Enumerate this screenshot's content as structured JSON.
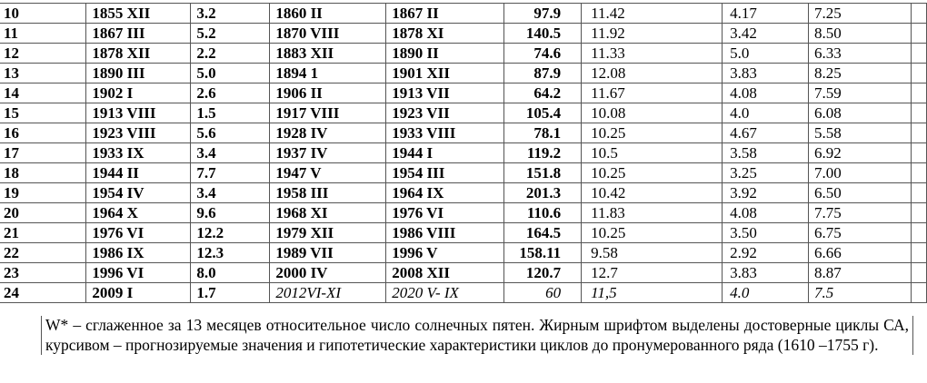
{
  "table": {
    "rows": [
      [
        "10",
        "1855 XII",
        "3.2",
        "1860 II",
        "1867 II",
        "97.9",
        "11.42",
        "4.17",
        "7.25"
      ],
      [
        "11",
        "1867 III",
        "5.2",
        "1870 VIII",
        "1878 XI",
        "140.5",
        "11.92",
        "3.42",
        "8.50"
      ],
      [
        "12",
        "1878 XII",
        "2.2",
        "1883 XII",
        "1890 II",
        "74.6",
        "11.33",
        "5.0",
        "6.33"
      ],
      [
        "13",
        "1890 III",
        "5.0",
        "1894 1",
        "1901 XII",
        "87.9",
        "12.08",
        "3.83",
        "8.25"
      ],
      [
        "14",
        "1902 I",
        "2.6",
        "1906 II",
        "1913 VII",
        "64.2",
        "11.67",
        "4.08",
        "7.59"
      ],
      [
        "15",
        "1913 VIII",
        "1.5",
        "1917 VIII",
        "1923 VII",
        "105.4",
        "10.08",
        "4.0",
        "6.08"
      ],
      [
        "16",
        "1923 VIII",
        "5.6",
        "1928 IV",
        "1933 VIII",
        "78.1",
        "10.25",
        "4.67",
        "5.58"
      ],
      [
        "17",
        "1933 IX",
        "3.4",
        "1937 IV",
        "1944 I",
        "119.2",
        "10.5",
        "3.58",
        "6.92"
      ],
      [
        "18",
        "1944 II",
        "7.7",
        "1947 V",
        "1954 III",
        "151.8",
        "10.25",
        "3.25",
        "7.00"
      ],
      [
        "19",
        "1954 IV",
        "3.4",
        "1958 III",
        "1964 IX",
        "201.3",
        "10.42",
        "3.92",
        "6.50"
      ],
      [
        "20",
        "1964 X",
        "9.6",
        "1968 XI",
        "1976 VI",
        "110.6",
        "11.83",
        "4.08",
        "7.75"
      ],
      [
        "21",
        "1976 VI",
        "12.2",
        "1979 XII",
        "1986 VIII",
        "164.5",
        "10.25",
        "3.50",
        "6.75"
      ],
      [
        "22",
        "1986 IX",
        "12.3",
        "1989 VII",
        "1996 V",
        "158.11",
        "9.58",
        "2.92",
        "6.66"
      ],
      [
        "23",
        "1996 VI",
        "8.0",
        "2000 IV",
        "2008 XII",
        "120.7",
        "12.7",
        "3.83",
        "8.87"
      ],
      [
        "24",
        "2009 I",
        "1.7",
        "2012VI-XI",
        "2020 V- IX",
        "60",
        "11,5",
        "4.0",
        "7.5"
      ]
    ]
  },
  "note": "W* – сглаженное за 13 месяцев относительное число солнечных пятен. Жирным шрифтом выделены достоверные циклы СА, курсивом – прогнозируемые значения и гипотетические характеристики циклов до пронумерованного ряда (1610 –1755 г)."
}
